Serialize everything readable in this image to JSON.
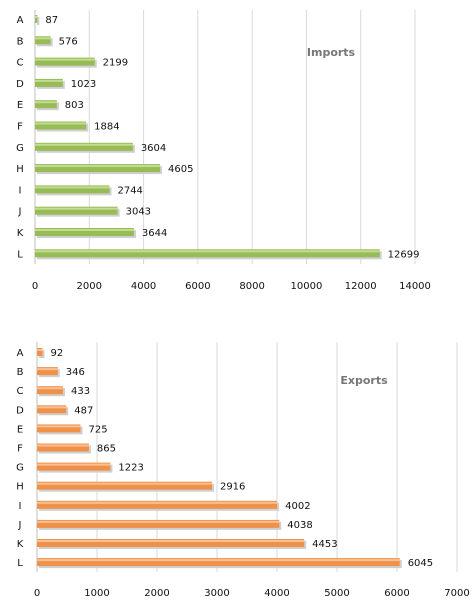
{
  "chart_data": [
    {
      "type": "bar",
      "orientation": "horizontal",
      "title": "Imports",
      "categories": [
        "A",
        "B",
        "C",
        "D",
        "E",
        "F",
        "G",
        "H",
        "I",
        "J",
        "K",
        "L"
      ],
      "values": [
        87,
        576,
        2199,
        1023,
        803,
        1884,
        3604,
        4605,
        2744,
        3043,
        3644,
        12699
      ],
      "xlim": [
        0,
        14000
      ],
      "xticks": [
        "0",
        "2000",
        "4000",
        "6000",
        "8000",
        "10000",
        "12000",
        "14000"
      ],
      "grid": true,
      "colors": {
        "bar": "#97bb57",
        "bar_highlight": "#c3dc8f"
      }
    },
    {
      "type": "bar",
      "orientation": "horizontal",
      "title": "Exports",
      "categories": [
        "A",
        "B",
        "C",
        "D",
        "E",
        "F",
        "G",
        "H",
        "I",
        "J",
        "K",
        "L"
      ],
      "values": [
        92,
        346,
        433,
        487,
        725,
        865,
        1223,
        2916,
        4002,
        4038,
        4453,
        6045
      ],
      "xlim": [
        0,
        7000
      ],
      "xticks": [
        "0",
        "1000",
        "2000",
        "3000",
        "4000",
        "5000",
        "6000",
        "7000"
      ],
      "grid": true,
      "colors": {
        "bar": "#f0914a",
        "bar_highlight": "#f8c094"
      }
    }
  ]
}
